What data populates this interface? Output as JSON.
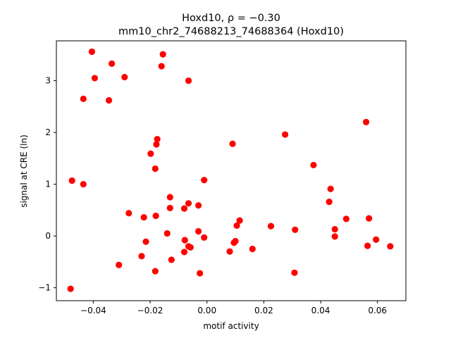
{
  "chart_data": {
    "type": "scatter",
    "title_line1": "Hoxd10, ρ = −0.30",
    "title_line2": "mm10_chr2_74688213_74688364 (Hoxd10)",
    "xlabel": "motif activity",
    "ylabel": "signal at CRE (ln)",
    "xlim": [
      -0.053,
      0.07
    ],
    "ylim": [
      -1.25,
      3.77
    ],
    "xticks": [
      -0.04,
      -0.02,
      0.0,
      0.02,
      0.04,
      0.06
    ],
    "xtick_labels": [
      "−0.04",
      "−0.02",
      "0.00",
      "0.02",
      "0.04",
      "0.06"
    ],
    "yticks": [
      -1,
      0,
      1,
      2,
      3
    ],
    "ytick_labels": [
      "−1",
      "0",
      "1",
      "2",
      "3"
    ],
    "grid": false,
    "point_color": "#ff0000",
    "points": [
      {
        "x": -0.0405,
        "y": 3.56
      },
      {
        "x": -0.0335,
        "y": 3.33
      },
      {
        "x": -0.0155,
        "y": 3.51
      },
      {
        "x": -0.016,
        "y": 3.28
      },
      {
        "x": -0.0395,
        "y": 3.05
      },
      {
        "x": -0.029,
        "y": 3.07
      },
      {
        "x": -0.0065,
        "y": 3.0
      },
      {
        "x": -0.0435,
        "y": 2.65
      },
      {
        "x": -0.0345,
        "y": 2.62
      },
      {
        "x": 0.056,
        "y": 2.2
      },
      {
        "x": 0.0275,
        "y": 1.96
      },
      {
        "x": -0.0175,
        "y": 1.87
      },
      {
        "x": -0.0178,
        "y": 1.77
      },
      {
        "x": 0.009,
        "y": 1.78
      },
      {
        "x": -0.0198,
        "y": 1.59
      },
      {
        "x": 0.0375,
        "y": 1.37
      },
      {
        "x": -0.0182,
        "y": 1.3
      },
      {
        "x": -0.0475,
        "y": 1.07
      },
      {
        "x": -0.0435,
        "y": 1.0
      },
      {
        "x": -0.001,
        "y": 1.08
      },
      {
        "x": 0.0435,
        "y": 0.91
      },
      {
        "x": -0.013,
        "y": 0.75
      },
      {
        "x": 0.043,
        "y": 0.66
      },
      {
        "x": -0.0065,
        "y": 0.63
      },
      {
        "x": -0.003,
        "y": 0.59
      },
      {
        "x": -0.013,
        "y": 0.54
      },
      {
        "x": -0.008,
        "y": 0.53
      },
      {
        "x": -0.0275,
        "y": 0.44
      },
      {
        "x": -0.018,
        "y": 0.39
      },
      {
        "x": -0.0222,
        "y": 0.36
      },
      {
        "x": 0.049,
        "y": 0.33
      },
      {
        "x": 0.057,
        "y": 0.34
      },
      {
        "x": 0.0115,
        "y": 0.3
      },
      {
        "x": 0.0105,
        "y": 0.2
      },
      {
        "x": 0.0225,
        "y": 0.19
      },
      {
        "x": 0.031,
        "y": 0.12
      },
      {
        "x": 0.045,
        "y": 0.13
      },
      {
        "x": -0.003,
        "y": 0.09
      },
      {
        "x": -0.014,
        "y": 0.05
      },
      {
        "x": 0.045,
        "y": -0.01
      },
      {
        "x": -0.001,
        "y": -0.03
      },
      {
        "x": 0.0595,
        "y": -0.07
      },
      {
        "x": 0.01,
        "y": -0.1
      },
      {
        "x": 0.0095,
        "y": -0.13
      },
      {
        "x": -0.0215,
        "y": -0.11
      },
      {
        "x": -0.0078,
        "y": -0.08
      },
      {
        "x": -0.0065,
        "y": -0.2
      },
      {
        "x": -0.0058,
        "y": -0.22
      },
      {
        "x": 0.0565,
        "y": -0.19
      },
      {
        "x": 0.0645,
        "y": -0.2
      },
      {
        "x": 0.016,
        "y": -0.25
      },
      {
        "x": 0.008,
        "y": -0.3
      },
      {
        "x": -0.008,
        "y": -0.31
      },
      {
        "x": -0.023,
        "y": -0.39
      },
      {
        "x": -0.0125,
        "y": -0.46
      },
      {
        "x": -0.031,
        "y": -0.56
      },
      {
        "x": -0.0182,
        "y": -0.68
      },
      {
        "x": -0.0025,
        "y": -0.72
      },
      {
        "x": 0.0308,
        "y": -0.71
      },
      {
        "x": -0.048,
        "y": -1.02
      }
    ]
  }
}
